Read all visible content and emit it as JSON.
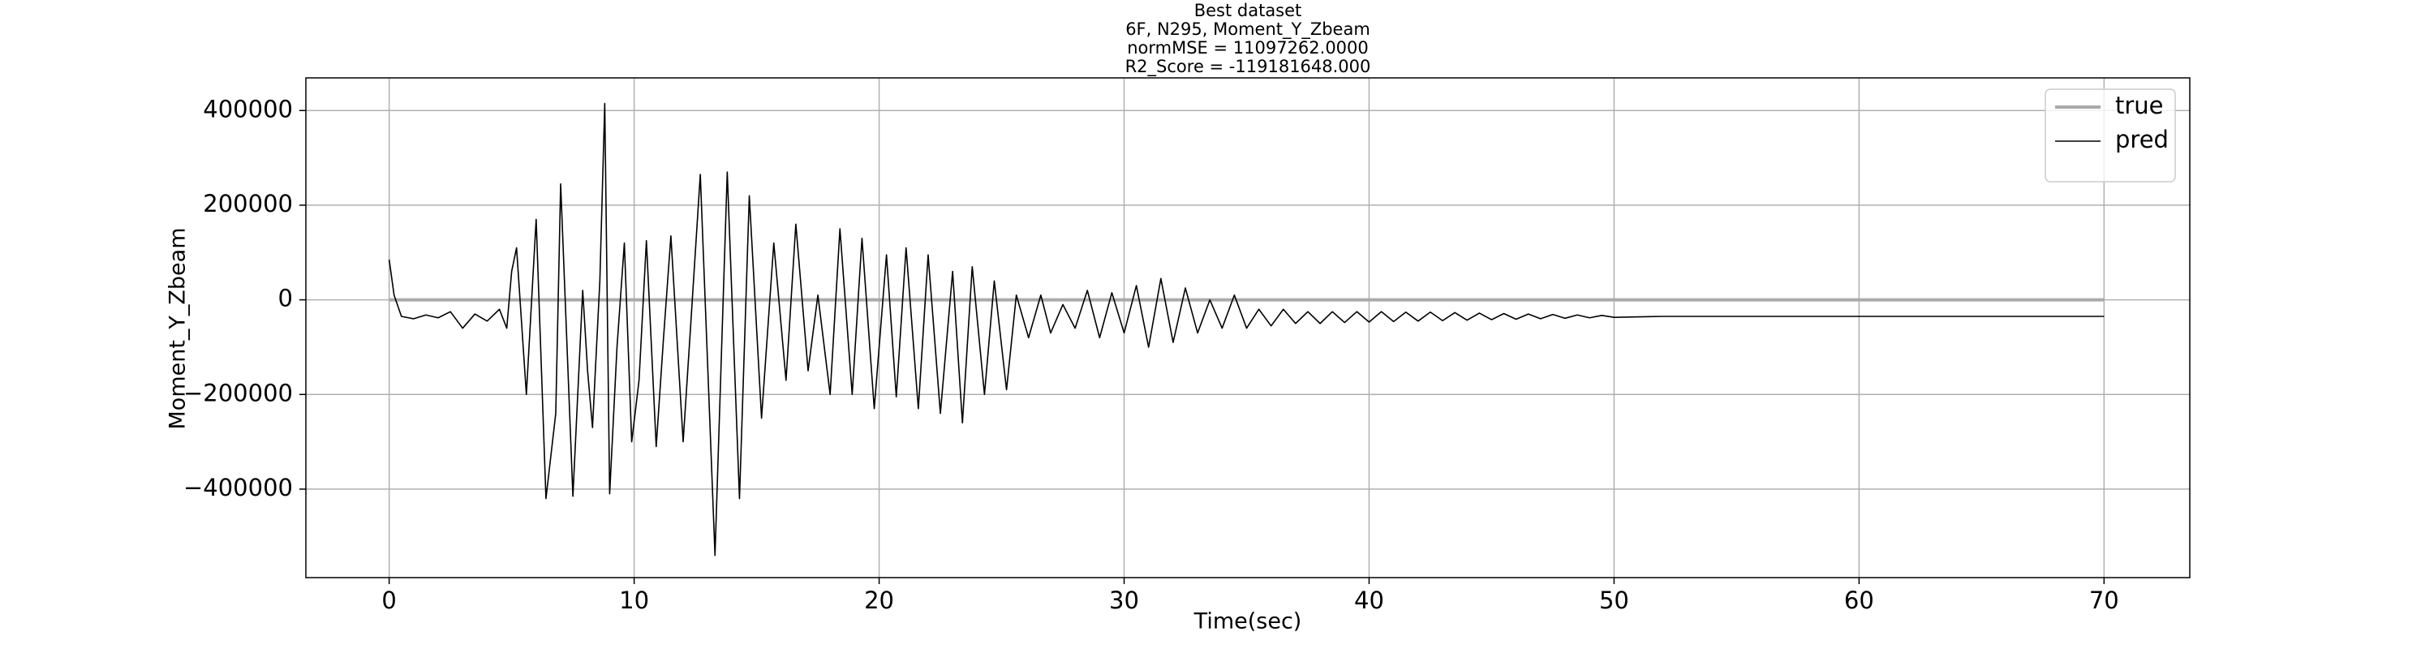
{
  "chart_data": {
    "type": "line",
    "title": [
      "Best dataset",
      "6F, N295, Moment_Y_Zbeam",
      "normMSE = 11097262.0000",
      "R2_Score = -119181648.000"
    ],
    "x_label": "Time(sec)",
    "y_label": "Moment_Y_Zbeam",
    "xlim": [
      -3.4,
      73.5
    ],
    "ylim": [
      -587000,
      469000
    ],
    "xticks": [
      0,
      10,
      20,
      30,
      40,
      50,
      60,
      70
    ],
    "yticks": [
      {
        "value": -400000,
        "label": "−400000"
      },
      {
        "value": -200000,
        "label": "−200000"
      },
      0,
      200000,
      400000
    ],
    "grid": true,
    "legend": "upper right",
    "series": [
      {
        "name": "true",
        "color": "#aaaaaa",
        "x": [
          0,
          70
        ],
        "values": [
          0,
          0
        ]
      },
      {
        "name": "pred",
        "color": "#000000",
        "x": [
          0,
          0.2,
          0.5,
          1,
          1.5,
          2,
          2.5,
          3,
          3.5,
          4,
          4.5,
          4.8,
          5.0,
          5.2,
          5.6,
          6.0,
          6.4,
          6.8,
          7.0,
          7.5,
          7.9,
          8.1,
          8.3,
          8.6,
          8.8,
          9.0,
          9.3,
          9.6,
          9.9,
          10.2,
          10.5,
          10.9,
          11.2,
          11.5,
          12.0,
          12.3,
          12.7,
          13.3,
          13.8,
          14.3,
          14.7,
          15.2,
          15.7,
          16.2,
          16.6,
          17.1,
          17.5,
          18.0,
          18.4,
          18.9,
          19.3,
          19.8,
          20.3,
          20.7,
          21.1,
          21.6,
          22.0,
          22.5,
          23.0,
          23.4,
          23.8,
          24.3,
          24.7,
          25.2,
          25.6,
          26.1,
          26.6,
          27.0,
          27.5,
          28.0,
          28.5,
          29.0,
          29.5,
          30.0,
          30.5,
          31.0,
          31.5,
          32.0,
          32.5,
          33.0,
          33.5,
          34.0,
          34.5,
          35.0,
          35.5,
          36.0,
          36.5,
          37.0,
          37.5,
          38.0,
          38.5,
          39.0,
          39.5,
          40.0,
          40.5,
          41.0,
          41.5,
          42.0,
          42.5,
          43.0,
          43.5,
          44.0,
          44.5,
          45.0,
          45.5,
          46.0,
          46.5,
          47.0,
          47.5,
          48.0,
          48.5,
          49.0,
          49.5,
          50.0,
          52,
          60,
          70
        ],
        "values": [
          85000,
          10000,
          -35000,
          -40000,
          -32000,
          -38000,
          -25000,
          -60000,
          -30000,
          -45000,
          -20000,
          -60000,
          60000,
          110000,
          -200000,
          170000,
          -420000,
          -240000,
          245000,
          -415000,
          20000,
          -150000,
          -270000,
          40000,
          415000,
          -410000,
          -100000,
          120000,
          -300000,
          -170000,
          125000,
          -310000,
          -80000,
          135000,
          -300000,
          -60000,
          265000,
          -540000,
          270000,
          -420000,
          220000,
          -250000,
          120000,
          -170000,
          160000,
          -150000,
          10000,
          -200000,
          150000,
          -200000,
          130000,
          -230000,
          95000,
          -205000,
          110000,
          -230000,
          95000,
          -240000,
          60000,
          -260000,
          70000,
          -200000,
          40000,
          -190000,
          10000,
          -80000,
          10000,
          -70000,
          -10000,
          -60000,
          20000,
          -80000,
          15000,
          -70000,
          30000,
          -100000,
          45000,
          -90000,
          25000,
          -70000,
          0,
          -60000,
          10000,
          -60000,
          -20000,
          -55000,
          -20000,
          -50000,
          -25000,
          -50000,
          -25000,
          -48000,
          -25000,
          -47000,
          -25000,
          -46000,
          -26000,
          -45000,
          -26000,
          -44000,
          -27000,
          -43000,
          -28000,
          -42000,
          -29000,
          -41000,
          -30000,
          -40000,
          -31000,
          -39000,
          -32000,
          -38000,
          -33000,
          -37000,
          -35000,
          -35000,
          -35000
        ]
      }
    ]
  }
}
